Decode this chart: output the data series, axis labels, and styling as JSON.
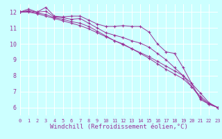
{
  "background_color": "#ccffff",
  "grid_color": "#ffffff",
  "line_color": "#993399",
  "marker": "+",
  "xlabel": "Windchill (Refroidissement éolien,°C)",
  "xlabel_fontsize": 6.5,
  "xlim": [
    0,
    23
  ],
  "ylim": [
    5.5,
    12.5
  ],
  "yticks": [
    6,
    7,
    8,
    9,
    10,
    11,
    12
  ],
  "xticks": [
    0,
    1,
    2,
    3,
    4,
    5,
    6,
    7,
    8,
    9,
    10,
    11,
    12,
    13,
    14,
    15,
    16,
    17,
    18,
    19,
    20,
    21,
    22,
    23
  ],
  "tick_fontsize_x": 5.0,
  "tick_fontsize_y": 6.0,
  "series": [
    [
      12.0,
      12.2,
      12.0,
      12.3,
      11.75,
      11.7,
      11.75,
      11.75,
      11.5,
      11.25,
      11.1,
      11.1,
      11.15,
      11.1,
      11.1,
      10.75,
      10.0,
      9.5,
      9.4,
      8.5,
      7.5,
      6.5,
      6.2,
      6.0
    ],
    [
      12.0,
      12.1,
      12.0,
      12.05,
      11.7,
      11.65,
      11.55,
      11.6,
      11.3,
      11.0,
      10.7,
      10.55,
      10.4,
      10.2,
      10.05,
      9.8,
      9.4,
      9.0,
      8.5,
      8.0,
      7.3,
      6.6,
      6.2,
      6.0
    ],
    [
      12.0,
      12.05,
      11.95,
      11.85,
      11.65,
      11.55,
      11.4,
      11.3,
      11.1,
      10.8,
      10.5,
      10.2,
      10.0,
      9.7,
      9.45,
      9.2,
      8.9,
      8.6,
      8.3,
      8.0,
      7.5,
      6.9,
      6.3,
      6.0
    ],
    [
      12.0,
      12.0,
      11.9,
      11.75,
      11.6,
      11.45,
      11.3,
      11.15,
      10.95,
      10.7,
      10.45,
      10.2,
      9.95,
      9.7,
      9.4,
      9.1,
      8.75,
      8.4,
      8.1,
      7.8,
      7.3,
      6.7,
      6.25,
      6.0
    ]
  ]
}
